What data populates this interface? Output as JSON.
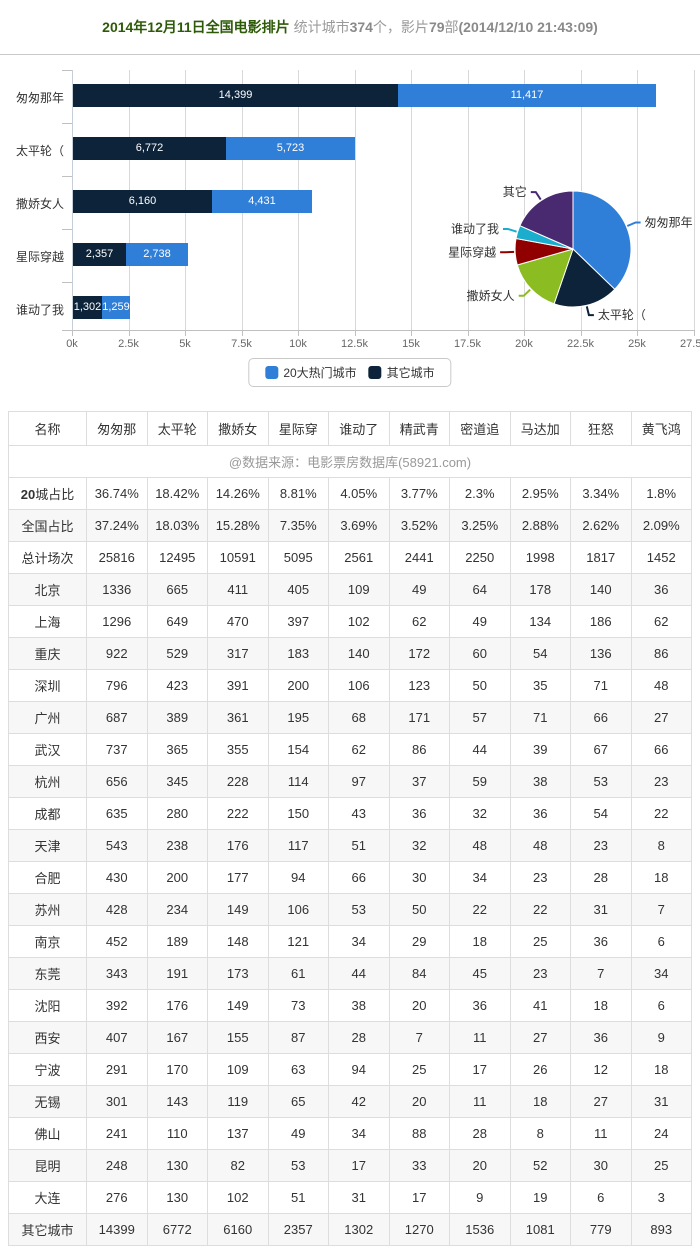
{
  "header": {
    "title": "2014年12月11日全国电影排片",
    "subtitle_segments": [
      {
        "text": " 统计城市",
        "bold": false
      },
      {
        "text": "374",
        "bold": true
      },
      {
        "text": "个，影片",
        "bold": false
      },
      {
        "text": "79",
        "bold": true
      },
      {
        "text": "部",
        "bold": false
      },
      {
        "text": "(2014/12/10 21:43:09)",
        "bold": true
      }
    ]
  },
  "colors": {
    "hot20_blue": "#2f7ed8",
    "other_navy": "#0d233a",
    "gridline": "#d8d8d8",
    "title_green": "#2d5a08"
  },
  "chart_data": [
    {
      "type": "bar",
      "orientation": "horizontal-stacked",
      "categories": [
        "匆匆那年",
        "太平轮（",
        "撒娇女人",
        "星际穿越",
        "谁动了我"
      ],
      "series": [
        {
          "name": "其它城市",
          "color": "#0d233a",
          "values": [
            14399,
            6772,
            6160,
            2357,
            1302
          ],
          "data_labels": [
            "14,399",
            "6,772",
            "6,160",
            "2,357",
            "1,302"
          ]
        },
        {
          "name": "20大热门城市",
          "color": "#2f7ed8",
          "values": [
            11417,
            5723,
            4431,
            2738,
            1259
          ],
          "data_labels": [
            "11,417",
            "5,723",
            "4,431",
            "2,738",
            "1,259"
          ]
        }
      ],
      "xlim": [
        0,
        27500
      ],
      "x_tick_labels": [
        "0k",
        "2.5k",
        "5k",
        "7.5k",
        "10k",
        "12.5k",
        "15k",
        "17.5k",
        "20k",
        "22.5k",
        "25k",
        "27.5k"
      ],
      "grid": true,
      "legend_position": "bottom-center"
    },
    {
      "type": "pie",
      "labels": [
        "匆匆那年",
        "太平轮（",
        "撒娇女人",
        "星际穿越",
        "谁动了我",
        "其它"
      ],
      "values_percent": [
        37.24,
        18.03,
        15.28,
        7.35,
        3.69,
        18.41
      ],
      "colors": [
        "#2f7ed8",
        "#0d233a",
        "#8bbc21",
        "#910000",
        "#1aadce",
        "#492970"
      ],
      "start_angle_deg": 0,
      "direction": "clockwise"
    }
  ],
  "legend": {
    "items": [
      {
        "label": "20大热门城市",
        "color": "#2f7ed8"
      },
      {
        "label": "其它城市",
        "color": "#0d233a"
      }
    ]
  },
  "table": {
    "source_note": "@数据来源：电影票房数据库(58921.com)",
    "headers": [
      "名称",
      "匆匆那",
      "太平轮",
      "撒娇女",
      "星际穿",
      "谁动了",
      "精武青",
      "密道追",
      "马达加",
      "狂怒",
      "黄飞鸿"
    ],
    "rows": [
      {
        "label": "20城占比",
        "bold_prefix": "20",
        "values": [
          "36.74%",
          "18.42%",
          "14.26%",
          "8.81%",
          "4.05%",
          "3.77%",
          "2.3%",
          "2.95%",
          "3.34%",
          "1.8%"
        ]
      },
      {
        "label": "全国占比",
        "values": [
          "37.24%",
          "18.03%",
          "15.28%",
          "7.35%",
          "3.69%",
          "3.52%",
          "3.25%",
          "2.88%",
          "2.62%",
          "2.09%"
        ]
      },
      {
        "label": "总计场次",
        "values": [
          "25816",
          "12495",
          "10591",
          "5095",
          "2561",
          "2441",
          "2250",
          "1998",
          "1817",
          "1452"
        ]
      },
      {
        "label": "北京",
        "values": [
          "1336",
          "665",
          "411",
          "405",
          "109",
          "49",
          "64",
          "178",
          "140",
          "36"
        ]
      },
      {
        "label": "上海",
        "values": [
          "1296",
          "649",
          "470",
          "397",
          "102",
          "62",
          "49",
          "134",
          "186",
          "62"
        ]
      },
      {
        "label": "重庆",
        "values": [
          "922",
          "529",
          "317",
          "183",
          "140",
          "172",
          "60",
          "54",
          "136",
          "86"
        ]
      },
      {
        "label": "深圳",
        "values": [
          "796",
          "423",
          "391",
          "200",
          "106",
          "123",
          "50",
          "35",
          "71",
          "48"
        ]
      },
      {
        "label": "广州",
        "values": [
          "687",
          "389",
          "361",
          "195",
          "68",
          "171",
          "57",
          "71",
          "66",
          "27"
        ]
      },
      {
        "label": "武汉",
        "values": [
          "737",
          "365",
          "355",
          "154",
          "62",
          "86",
          "44",
          "39",
          "67",
          "66"
        ]
      },
      {
        "label": "杭州",
        "values": [
          "656",
          "345",
          "228",
          "114",
          "97",
          "37",
          "59",
          "38",
          "53",
          "23"
        ]
      },
      {
        "label": "成都",
        "values": [
          "635",
          "280",
          "222",
          "150",
          "43",
          "36",
          "32",
          "36",
          "54",
          "22"
        ]
      },
      {
        "label": "天津",
        "values": [
          "543",
          "238",
          "176",
          "117",
          "51",
          "32",
          "48",
          "48",
          "23",
          "8"
        ]
      },
      {
        "label": "合肥",
        "values": [
          "430",
          "200",
          "177",
          "94",
          "66",
          "30",
          "34",
          "23",
          "28",
          "18"
        ]
      },
      {
        "label": "苏州",
        "values": [
          "428",
          "234",
          "149",
          "106",
          "53",
          "50",
          "22",
          "22",
          "31",
          "7"
        ]
      },
      {
        "label": "南京",
        "values": [
          "452",
          "189",
          "148",
          "121",
          "34",
          "29",
          "18",
          "25",
          "36",
          "6"
        ]
      },
      {
        "label": "东莞",
        "values": [
          "343",
          "191",
          "173",
          "61",
          "44",
          "84",
          "45",
          "23",
          "7",
          "34"
        ]
      },
      {
        "label": "沈阳",
        "values": [
          "392",
          "176",
          "149",
          "73",
          "38",
          "20",
          "36",
          "41",
          "18",
          "6"
        ]
      },
      {
        "label": "西安",
        "values": [
          "407",
          "167",
          "155",
          "87",
          "28",
          "7",
          "11",
          "27",
          "36",
          "9"
        ]
      },
      {
        "label": "宁波",
        "values": [
          "291",
          "170",
          "109",
          "63",
          "94",
          "25",
          "17",
          "26",
          "12",
          "18"
        ]
      },
      {
        "label": "无锡",
        "values": [
          "301",
          "143",
          "119",
          "65",
          "42",
          "20",
          "11",
          "18",
          "27",
          "31"
        ]
      },
      {
        "label": "佛山",
        "values": [
          "241",
          "110",
          "137",
          "49",
          "34",
          "88",
          "28",
          "8",
          "11",
          "24"
        ]
      },
      {
        "label": "昆明",
        "values": [
          "248",
          "130",
          "82",
          "53",
          "17",
          "33",
          "20",
          "52",
          "30",
          "25"
        ]
      },
      {
        "label": "大连",
        "values": [
          "276",
          "130",
          "102",
          "51",
          "31",
          "17",
          "9",
          "19",
          "6",
          "3"
        ]
      },
      {
        "label": "其它城市",
        "values": [
          "14399",
          "6772",
          "6160",
          "2357",
          "1302",
          "1270",
          "1536",
          "1081",
          "779",
          "893"
        ]
      }
    ]
  }
}
